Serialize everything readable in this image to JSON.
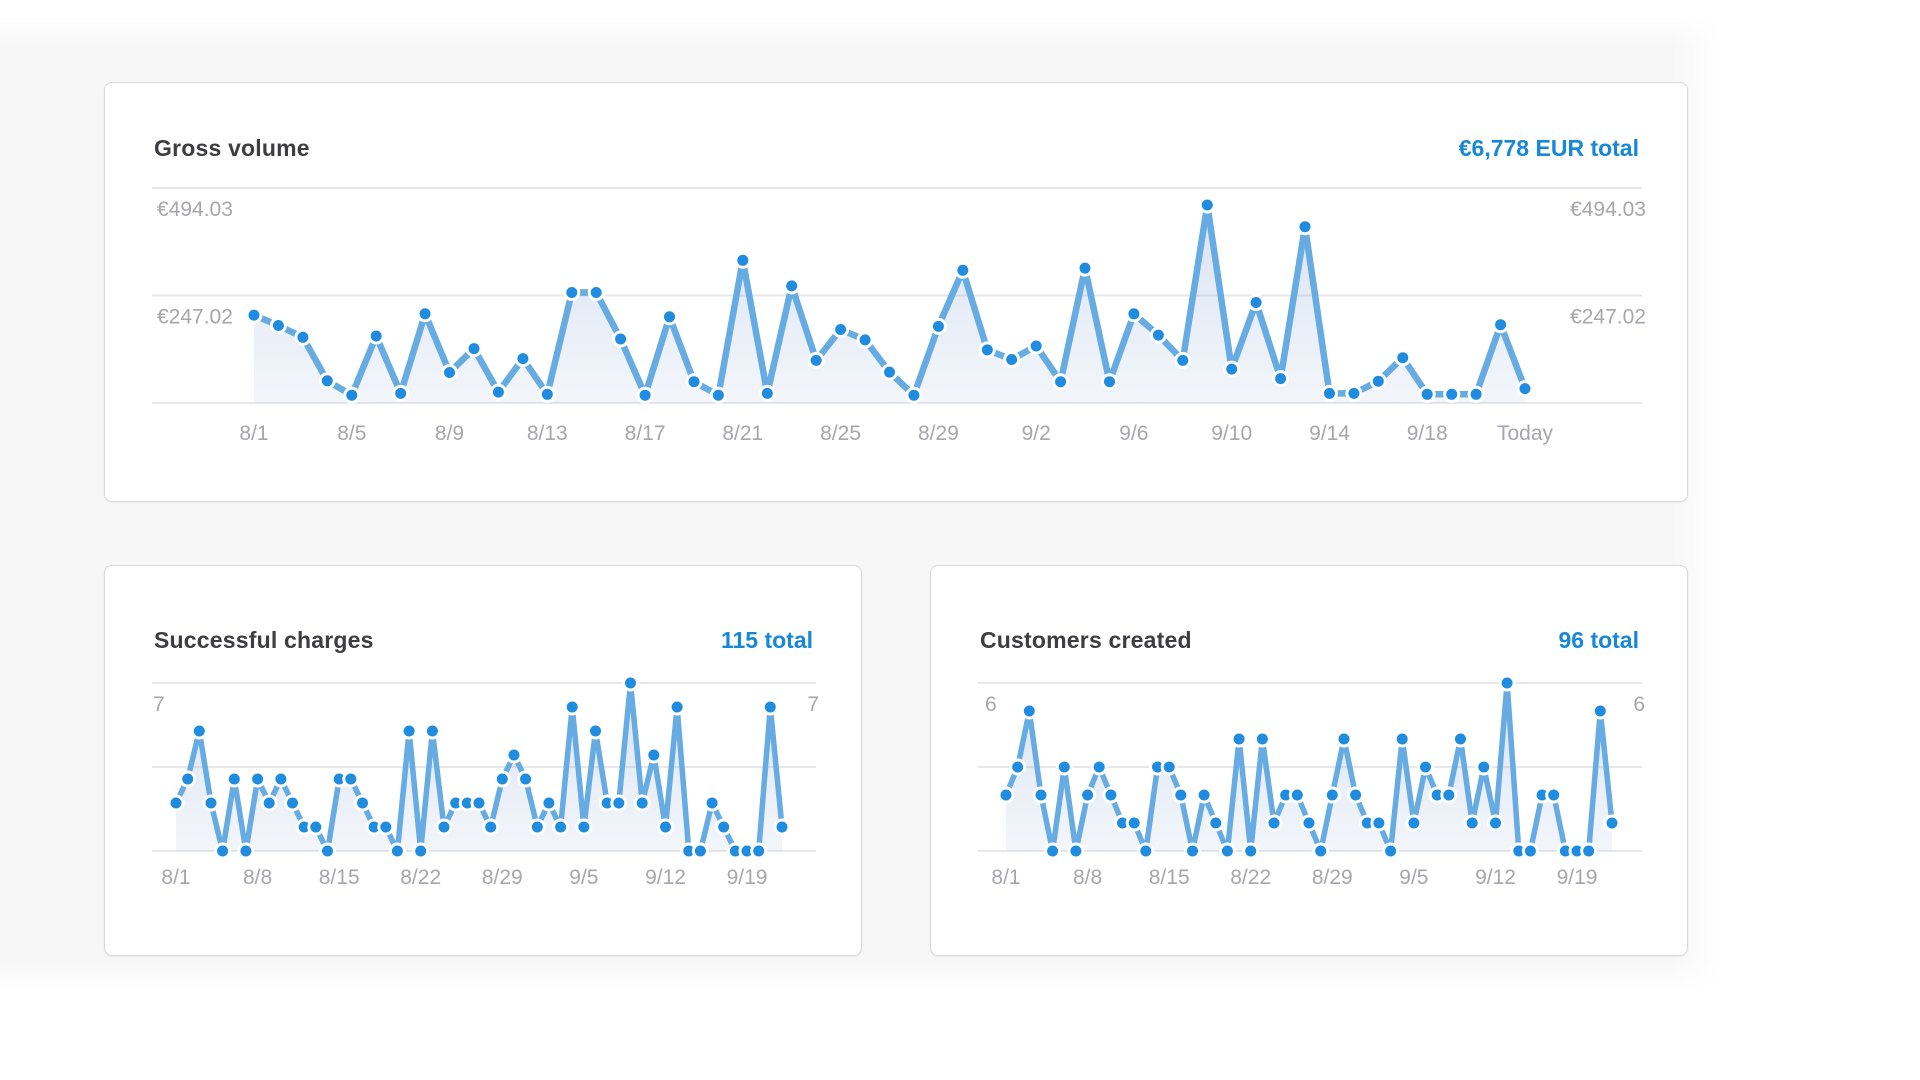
{
  "colors": {
    "accent_blue": "#1787d8",
    "dot_fill": "#1f8ce0",
    "line": "#66abe2",
    "area_top": "rgba(120,153,208,0.28)",
    "area_bottom": "rgba(120,153,208,0.09)",
    "gridline": "#e7e7ea",
    "axis_label": "#a6a6ac",
    "title_text": "#3d3d42",
    "card_border": "#d9d9da",
    "page_band": "#f7f7f8"
  },
  "charts": [
    {
      "id": "gross_volume",
      "type": "area",
      "title": "Gross volume",
      "total": "€6,778 EUR total",
      "y_top": 494.03,
      "y_gridlines": [
        {
          "value": 494.03,
          "label": "€494.03"
        },
        {
          "value": 247.02,
          "label": "€247.02"
        }
      ],
      "x_ticks": [
        {
          "day": 0,
          "label": "8/1"
        },
        {
          "day": 4,
          "label": "8/5"
        },
        {
          "day": 8,
          "label": "8/9"
        },
        {
          "day": 12,
          "label": "8/13"
        },
        {
          "day": 16,
          "label": "8/17"
        },
        {
          "day": 20,
          "label": "8/21"
        },
        {
          "day": 24,
          "label": "8/25"
        },
        {
          "day": 28,
          "label": "8/29"
        },
        {
          "day": 32,
          "label": "9/2"
        },
        {
          "day": 36,
          "label": "9/6"
        },
        {
          "day": 40,
          "label": "9/10"
        },
        {
          "day": 44,
          "label": "9/14"
        },
        {
          "day": 48,
          "label": "9/18"
        },
        {
          "day": 52,
          "label": "Today"
        }
      ],
      "n_points": 53,
      "values": [
        202,
        178,
        151,
        51,
        18,
        154,
        22,
        205,
        70,
        125,
        25,
        102,
        20,
        254,
        254,
        147,
        18,
        198,
        49,
        18,
        328,
        22,
        269,
        98,
        169,
        145,
        71,
        18,
        176,
        305,
        122,
        100,
        131,
        49,
        310,
        49,
        205,
        156,
        98,
        455,
        78,
        231,
        56,
        405,
        22,
        22,
        50,
        104,
        20,
        20,
        20,
        180,
        33
      ]
    },
    {
      "id": "successful_charges",
      "type": "area",
      "title": "Successful charges",
      "total": "115 total",
      "y_top": 7,
      "y_gridlines": [
        {
          "value": 7,
          "label": "7"
        },
        {
          "value": 3.5,
          "label": ""
        }
      ],
      "x_ticks": [
        {
          "day": 0,
          "label": "8/1"
        },
        {
          "day": 7,
          "label": "8/8"
        },
        {
          "day": 14,
          "label": "8/15"
        },
        {
          "day": 21,
          "label": "8/22"
        },
        {
          "day": 28,
          "label": "8/29"
        },
        {
          "day": 35,
          "label": "9/5"
        },
        {
          "day": 42,
          "label": "9/12"
        },
        {
          "day": 49,
          "label": "9/19"
        }
      ],
      "n_points": 53,
      "values": [
        2,
        3,
        5,
        2,
        0,
        3,
        0,
        3,
        2,
        3,
        2,
        1,
        1,
        0,
        3,
        3,
        2,
        1,
        1,
        0,
        5,
        0,
        5,
        1,
        2,
        2,
        2,
        1,
        3,
        4,
        3,
        1,
        2,
        1,
        6,
        1,
        5,
        2,
        2,
        7,
        2,
        4,
        1,
        6,
        0,
        0,
        2,
        1,
        0,
        0,
        0,
        6,
        1
      ]
    },
    {
      "id": "customers_created",
      "type": "area",
      "title": "Customers created",
      "total": "96 total",
      "y_top": 6,
      "y_gridlines": [
        {
          "value": 6,
          "label": "6"
        },
        {
          "value": 3,
          "label": ""
        }
      ],
      "x_ticks": [
        {
          "day": 0,
          "label": "8/1"
        },
        {
          "day": 7,
          "label": "8/8"
        },
        {
          "day": 14,
          "label": "8/15"
        },
        {
          "day": 21,
          "label": "8/22"
        },
        {
          "day": 28,
          "label": "8/29"
        },
        {
          "day": 35,
          "label": "9/5"
        },
        {
          "day": 42,
          "label": "9/12"
        },
        {
          "day": 49,
          "label": "9/19"
        }
      ],
      "n_points": 53,
      "values": [
        2,
        3,
        5,
        2,
        0,
        3,
        0,
        2,
        3,
        2,
        1,
        1,
        0,
        3,
        3,
        2,
        0,
        2,
        1,
        0,
        4,
        0,
        4,
        1,
        2,
        2,
        1,
        0,
        2,
        4,
        2,
        1,
        1,
        0,
        4,
        1,
        3,
        2,
        2,
        4,
        1,
        3,
        1,
        6,
        0,
        0,
        2,
        2,
        0,
        0,
        0,
        5,
        1
      ]
    }
  ]
}
